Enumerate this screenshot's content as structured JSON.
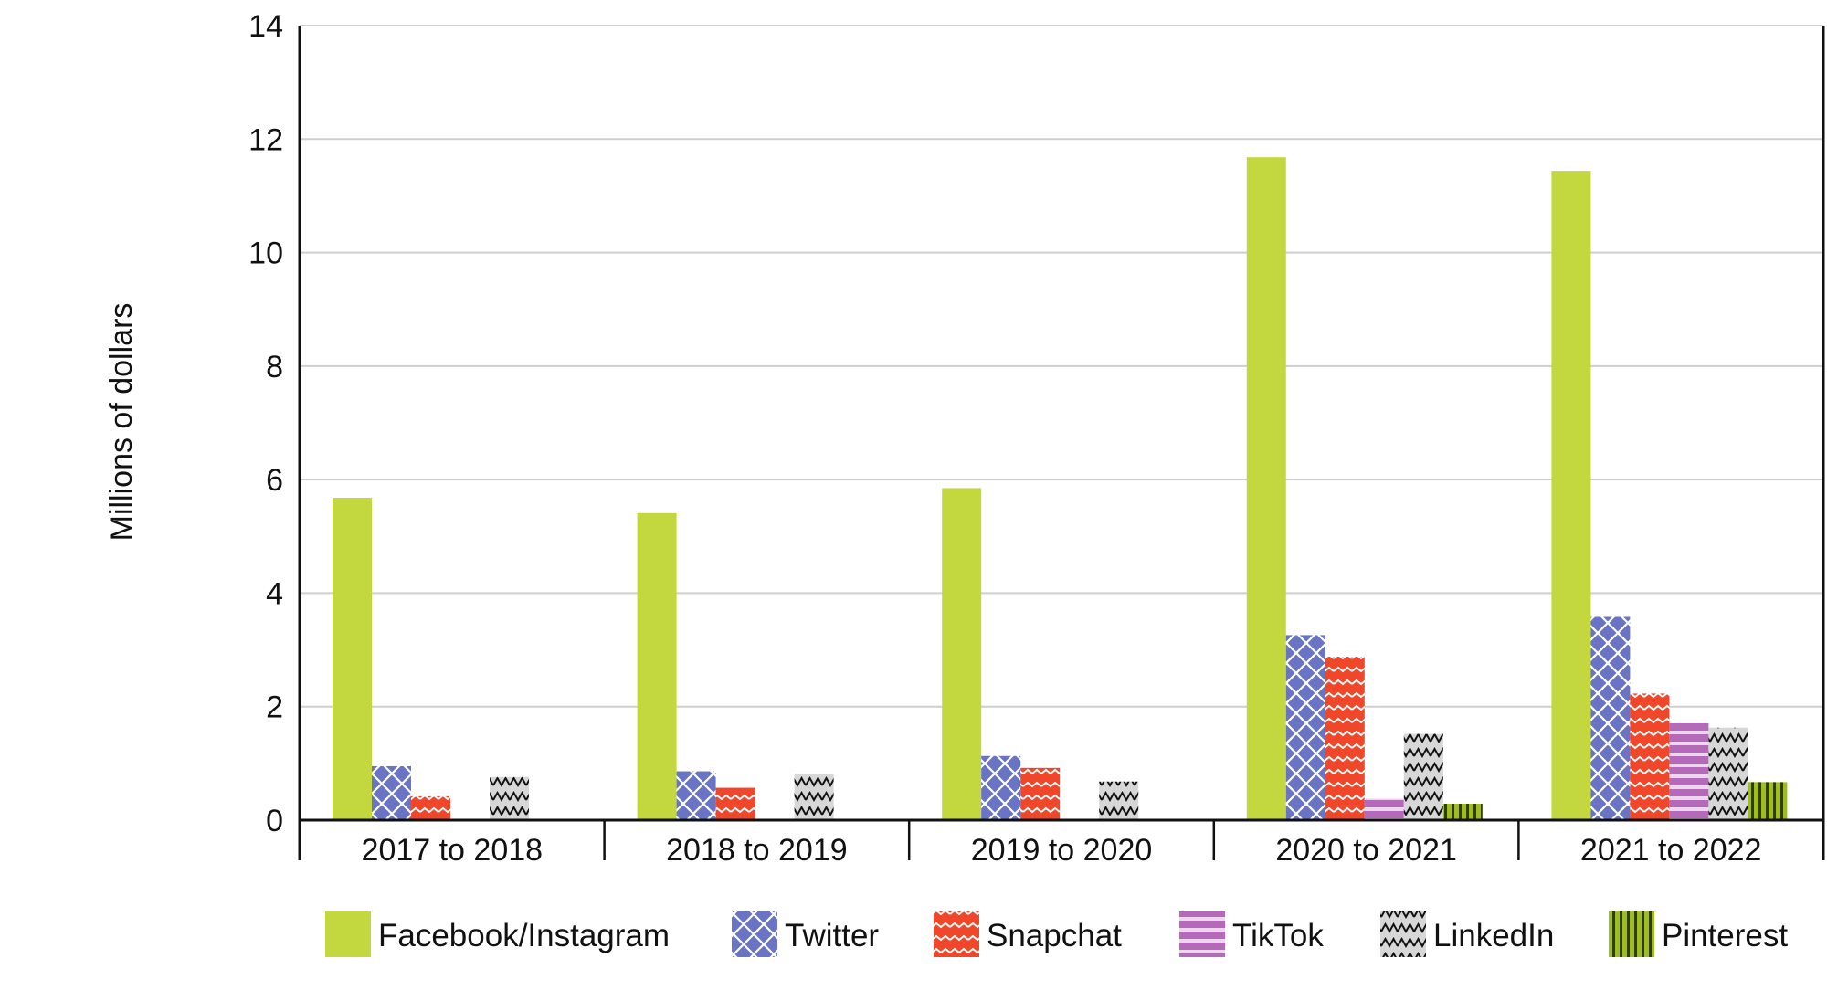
{
  "chart_data": {
    "type": "bar",
    "title": "",
    "xlabel": "",
    "ylabel": "Millions of dollars",
    "ylim": [
      0,
      14
    ],
    "yticks": [
      0,
      2,
      4,
      6,
      8,
      10,
      12,
      14
    ],
    "grid": true,
    "legend_position": "bottom",
    "categories": [
      "2017 to 2018",
      "2018 to 2019",
      "2019 to 2020",
      "2020 to 2021",
      "2021 to 2022"
    ],
    "series": [
      {
        "name": "Facebook/Instagram",
        "color": "#c3d83f",
        "pattern": "solid",
        "values": [
          5.68,
          5.41,
          5.85,
          11.68,
          11.44
        ]
      },
      {
        "name": "Twitter",
        "color": "#6a74c4",
        "pattern": "crosshatch",
        "values": [
          0.95,
          0.86,
          1.13,
          3.26,
          3.58
        ]
      },
      {
        "name": "Snapchat",
        "color": "#f0462a",
        "pattern": "wave",
        "values": [
          0.42,
          0.57,
          0.92,
          2.88,
          2.23
        ]
      },
      {
        "name": "TikTok",
        "color": "#b46ab9",
        "pattern": "horizontal-stripes",
        "values": [
          0,
          0,
          0,
          0.38,
          1.71
        ]
      },
      {
        "name": "LinkedIn",
        "color": "#d0d0d0",
        "pattern": "zigzag",
        "values": [
          0.76,
          0.81,
          0.68,
          1.52,
          1.63
        ]
      },
      {
        "name": "Pinterest",
        "color": "#9fbd22",
        "pattern": "vertical-stripes",
        "values": [
          0,
          0,
          0,
          0.29,
          0.67
        ]
      }
    ]
  }
}
